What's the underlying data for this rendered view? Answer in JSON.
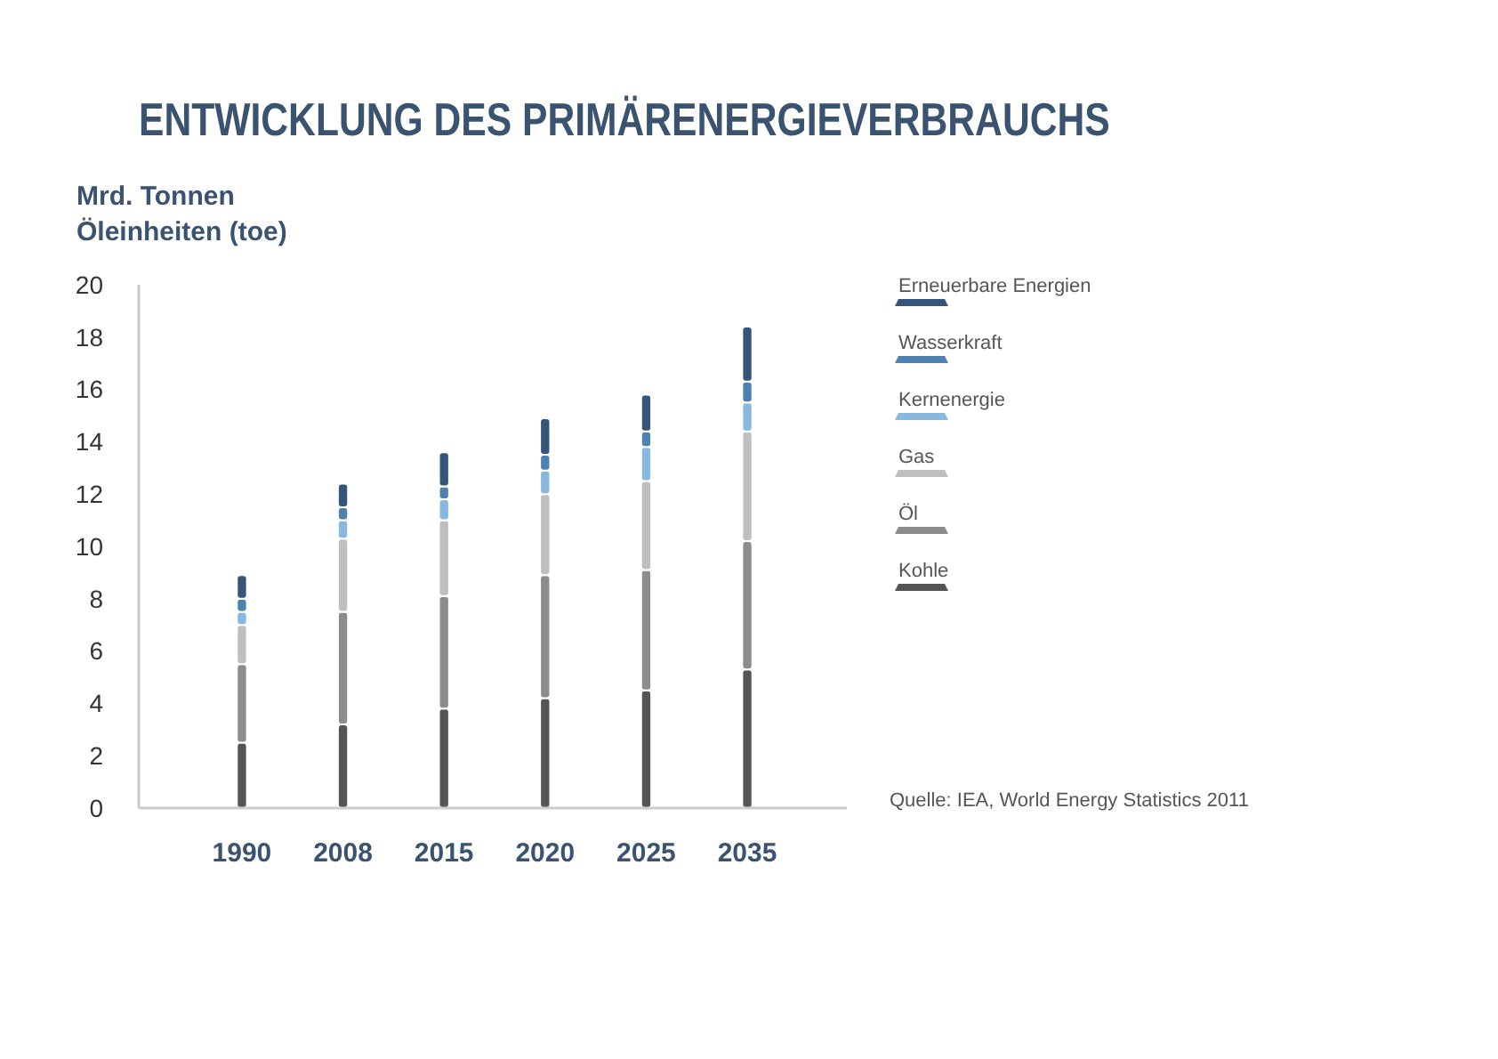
{
  "chart_data": {
    "type": "bar",
    "stacked": true,
    "title": "ENTWICKLUNG DES PRIMÄRENERGIEVERBRAUCHS",
    "ylabel": "Mrd. Tonnen\nÖleinheiten (toe)",
    "categories": [
      "1990",
      "2008",
      "2015",
      "2020",
      "2025",
      "2035"
    ],
    "series": [
      {
        "name": "Kohle",
        "color": "#555555",
        "values": [
          2.5,
          3.2,
          3.8,
          4.2,
          4.5,
          5.3
        ]
      },
      {
        "name": "Öl",
        "color": "#8c8c8c",
        "values": [
          3.0,
          4.3,
          4.3,
          4.7,
          4.6,
          4.9
        ]
      },
      {
        "name": "Gas",
        "color": "#bfbfbf",
        "values": [
          1.5,
          2.8,
          2.9,
          3.1,
          3.4,
          4.2
        ]
      },
      {
        "name": "Kernenergie",
        "color": "#86b8e0",
        "values": [
          0.5,
          0.7,
          0.8,
          0.9,
          1.3,
          1.1
        ]
      },
      {
        "name": "Wasserkraft",
        "color": "#4f81b0",
        "values": [
          0.5,
          0.5,
          0.5,
          0.6,
          0.6,
          0.8
        ]
      },
      {
        "name": "Erneuerbare Energien",
        "color": "#35557a",
        "values": [
          0.9,
          0.9,
          1.3,
          1.4,
          1.4,
          2.1
        ]
      }
    ],
    "ylim": [
      0,
      20
    ],
    "yticks": [
      0,
      2,
      4,
      6,
      8,
      10,
      12,
      14,
      16,
      18,
      20
    ],
    "grid": false,
    "legend": "right",
    "annotations": [
      "Quelle: IEA, World Energy Statistics 2011"
    ]
  }
}
